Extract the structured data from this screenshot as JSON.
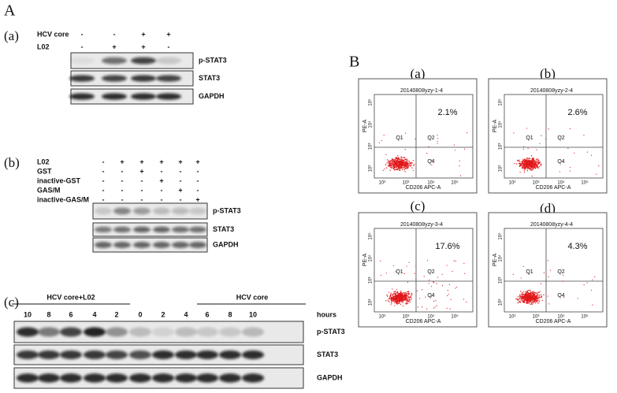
{
  "panel_a": {
    "label": "A",
    "sub_a": {
      "label": "(a)",
      "rows": [
        {
          "name": "HCV core",
          "signs": [
            "-",
            "-",
            "+",
            "+"
          ]
        },
        {
          "name": "L02",
          "signs": [
            "-",
            "+",
            "+",
            "-"
          ]
        }
      ],
      "blots": [
        "p-STAT3",
        "STAT3",
        "GAPDH"
      ]
    },
    "sub_b": {
      "label": "(b)",
      "rows": [
        {
          "name": "L02",
          "signs": [
            "-",
            "+",
            "+",
            "+",
            "+",
            "+"
          ]
        },
        {
          "name": "GST",
          "signs": [
            "-",
            "-",
            "+",
            "-",
            "-",
            "-"
          ]
        },
        {
          "name": "inactive-GST",
          "signs": [
            "-",
            "-",
            "-",
            "+",
            "-",
            "-"
          ]
        },
        {
          "name": "GAS/M",
          "signs": [
            "-",
            "-",
            "-",
            "-",
            "+",
            "-"
          ]
        },
        {
          "name": "inactive-GAS/M",
          "signs": [
            "-",
            "-",
            "-",
            "-",
            "-",
            "+"
          ]
        }
      ],
      "blots": [
        "p-STAT3",
        "STAT3",
        "GAPDH"
      ]
    },
    "sub_c": {
      "label": "(c)",
      "group_left": "HCV core+L02",
      "group_right": "HCV core",
      "hours": [
        "10",
        "8",
        "6",
        "4",
        "2",
        "0",
        "2",
        "4",
        "6",
        "8",
        "10"
      ],
      "hours_label": "hours",
      "blots": [
        "p-STAT3",
        "STAT3",
        "GAPDH"
      ]
    }
  },
  "panel_b": {
    "label": "B",
    "axis": {
      "x_label": "CD206 APC-A",
      "y_label": "PE-A",
      "ticks": [
        "10²",
        "10³",
        "10⁴",
        "10⁵"
      ]
    },
    "quadrants": [
      "Q1",
      "Q2",
      "Q4"
    ],
    "plots": [
      {
        "label": "(a)",
        "sample": "20140808yzy-1-4",
        "percent": "2.1%"
      },
      {
        "label": "(b)",
        "sample": "20140808yzy-2-4",
        "percent": "2.6%"
      },
      {
        "label": "(c)",
        "sample": "20140808yzy-3-4",
        "percent": "17.6%"
      },
      {
        "label": "(d)",
        "sample": "20140808yzy-4-4",
        "percent": "4.3%"
      }
    ]
  }
}
